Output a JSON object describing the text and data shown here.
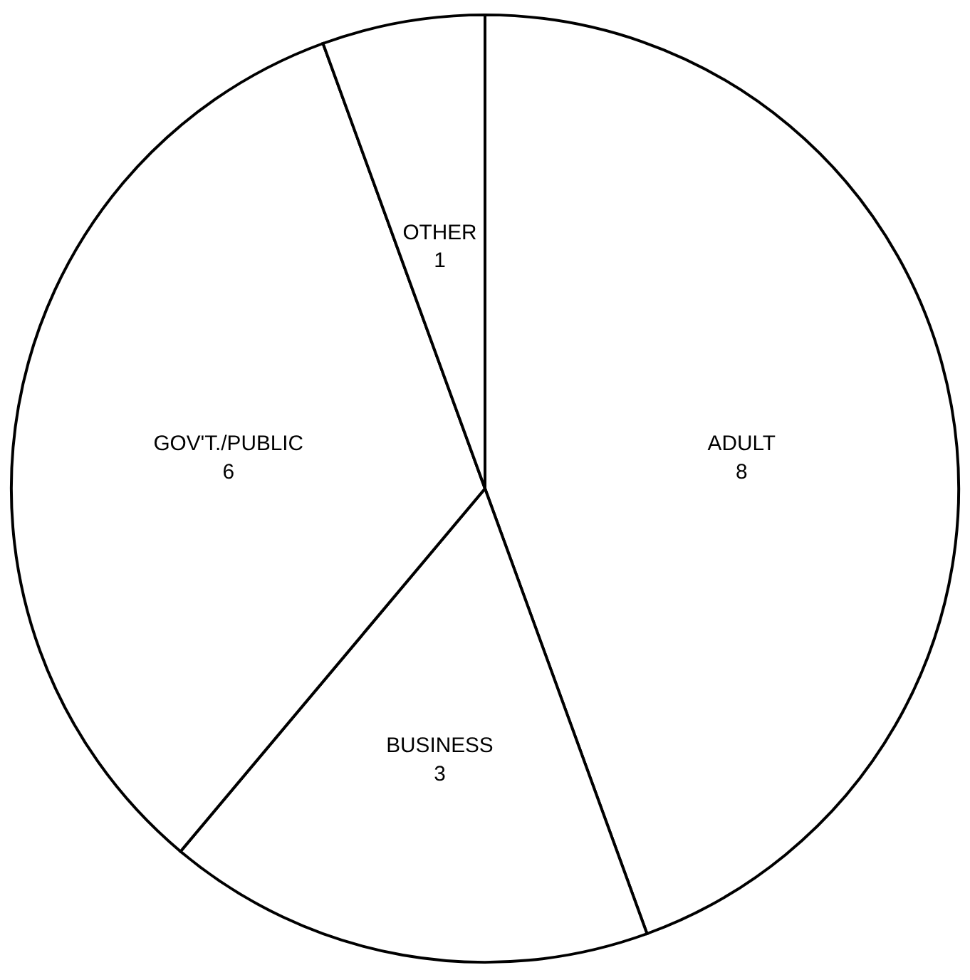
{
  "chart_data": {
    "type": "pie",
    "categories": [
      "ADULT",
      "BUSINESS",
      "GOV'T./PUBLIC",
      "OTHER"
    ],
    "values": [
      8,
      3,
      6,
      1
    ],
    "colors": [
      "#ffffff",
      "#ffffff",
      "#ffffff",
      "#ffffff"
    ],
    "data_labels": true,
    "legend": false
  }
}
